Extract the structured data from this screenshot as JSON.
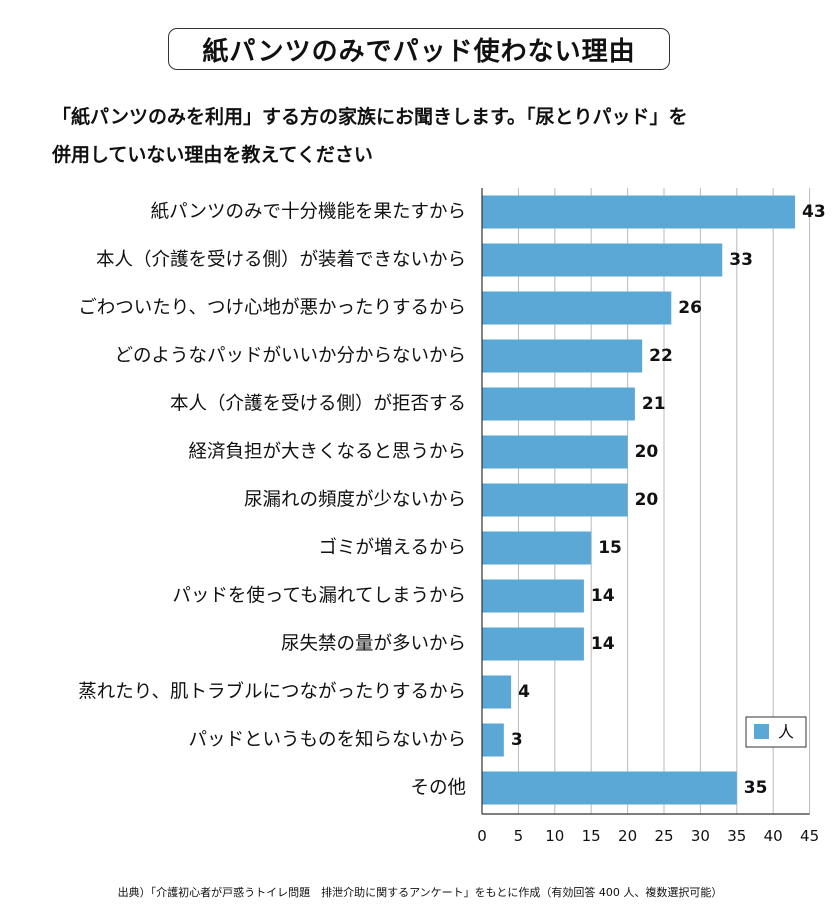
{
  "title": "紙パンツのみでパッド使わない理由",
  "question": {
    "line1": "「紙パンツのみを利用」する方の家族にお聞きします。「尿とりパッド」を",
    "line2": "併用していない理由を教えてください"
  },
  "source": "出典）「介護初心者が戸惑うトイレ問題　排泄介助に関するアンケート」をもとに作成（有効回答 400 人、複数選択可能）",
  "colors": {
    "bar": "#5ba8d6",
    "grid": "#bbbbbb",
    "axis": "#333333"
  },
  "chart_data": {
    "type": "bar",
    "orientation": "horizontal",
    "categories": [
      "紙パンツのみで十分機能を果たすから",
      "本人（介護を受ける側）が装着できないから",
      "ごわついたり、つけ心地が悪かったりするから",
      "どのようなパッドがいいか分からないから",
      "本人（介護を受ける側）が拒否する",
      "経済負担が大きくなると思うから",
      "尿漏れの頻度が少ないから",
      "ゴミが増えるから",
      "パッドを使っても漏れてしまうから",
      "尿失禁の量が多いから",
      "蒸れたり、肌トラブルにつながったりするから",
      "パッドというものを知らないから",
      "その他"
    ],
    "series": [
      {
        "name": "人",
        "values": [
          43,
          33,
          26,
          22,
          21,
          20,
          20,
          15,
          14,
          14,
          4,
          3,
          35
        ]
      }
    ],
    "xlim": [
      0,
      45
    ],
    "xticks": [
      "0",
      "5",
      "10",
      "15",
      "20",
      "25",
      "30",
      "35",
      "40",
      "45"
    ],
    "grid": true,
    "legend_position": "bottom-right"
  }
}
